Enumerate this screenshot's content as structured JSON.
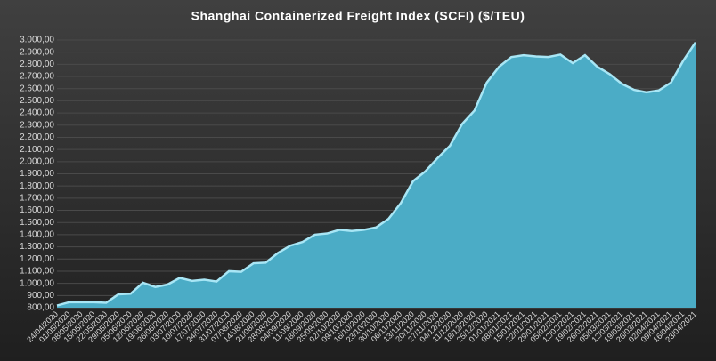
{
  "chart_data": {
    "type": "area",
    "title": "Shanghai Containerized Freight Index  (SCFI) ($/TEU)",
    "categories": [
      "24/04/2020",
      "01/05/2020",
      "08/05/2020",
      "15/05/2020",
      "22/05/2020",
      "29/05/2020",
      "05/06/2020",
      "12/06/2020",
      "19/06/2020",
      "26/06/2020",
      "03/07/2020",
      "10/07/2020",
      "17/07/2020",
      "24/07/2020",
      "31/07/2020",
      "07/08/2020",
      "14/08/2020",
      "21/08/2020",
      "28/08/2020",
      "04/09/2020",
      "11/09/2020",
      "18/09/2020",
      "25/09/2020",
      "02/10/2020",
      "09/10/2020",
      "16/10/2020",
      "23/10/2020",
      "30/10/2020",
      "06/11/2020",
      "13/11/2020",
      "20/11/2020",
      "27/11/2020",
      "04/12/2020",
      "11/12/2020",
      "18/12/2020",
      "25/12/2020",
      "01/01/2021",
      "08/01/2021",
      "15/01/2021",
      "22/01/2021",
      "29/01/2021",
      "05/02/2021",
      "12/02/2021",
      "19/02/2021",
      "26/02/2021",
      "05/03/2021",
      "12/03/2021",
      "19/03/2021",
      "26/03/2021",
      "02/04/2021",
      "09/04/2021",
      "16/04/2021",
      "23/04/2021"
    ],
    "values": [
      818,
      845,
      845,
      845,
      840,
      910,
      915,
      1005,
      970,
      990,
      1045,
      1020,
      1030,
      1015,
      1100,
      1095,
      1165,
      1170,
      1250,
      1310,
      1340,
      1400,
      1410,
      1440,
      1430,
      1440,
      1460,
      1530,
      1660,
      1840,
      1920,
      2030,
      2130,
      2310,
      2420,
      2650,
      2780,
      2860,
      2875,
      2865,
      2860,
      2880,
      2810,
      2875,
      2780,
      2720,
      2640,
      2590,
      2570,
      2585,
      2650,
      2830,
      2980
    ],
    "color": "#4bacc6",
    "ylim": [
      800,
      3000
    ],
    "yticks": [
      {
        "value": 800,
        "label": "800,00"
      },
      {
        "value": 900,
        "label": "900,00"
      },
      {
        "value": 1000,
        "label": "1.000,00"
      },
      {
        "value": 1100,
        "label": "1.100,00"
      },
      {
        "value": 1200,
        "label": "1.200,00"
      },
      {
        "value": 1300,
        "label": "1.300,00"
      },
      {
        "value": 1400,
        "label": "1.400,00"
      },
      {
        "value": 1500,
        "label": "1.500,00"
      },
      {
        "value": 1600,
        "label": "1.600,00"
      },
      {
        "value": 1700,
        "label": "1.700,00"
      },
      {
        "value": 1800,
        "label": "1.800,00"
      },
      {
        "value": 1900,
        "label": "1.900,00"
      },
      {
        "value": 2000,
        "label": "2.000,00"
      },
      {
        "value": 2100,
        "label": "2.100,00"
      },
      {
        "value": 2200,
        "label": "2.200,00"
      },
      {
        "value": 2300,
        "label": "2.300,00"
      },
      {
        "value": 2400,
        "label": "2.400,00"
      },
      {
        "value": 2500,
        "label": "2.500,00"
      },
      {
        "value": 2600,
        "label": "2.600,00"
      },
      {
        "value": 2700,
        "label": "2.700,00"
      },
      {
        "value": 2800,
        "label": "2.800,00"
      },
      {
        "value": 2900,
        "label": "2.900,00"
      },
      {
        "value": 3000,
        "label": "3.000,00"
      }
    ],
    "grid": true
  }
}
